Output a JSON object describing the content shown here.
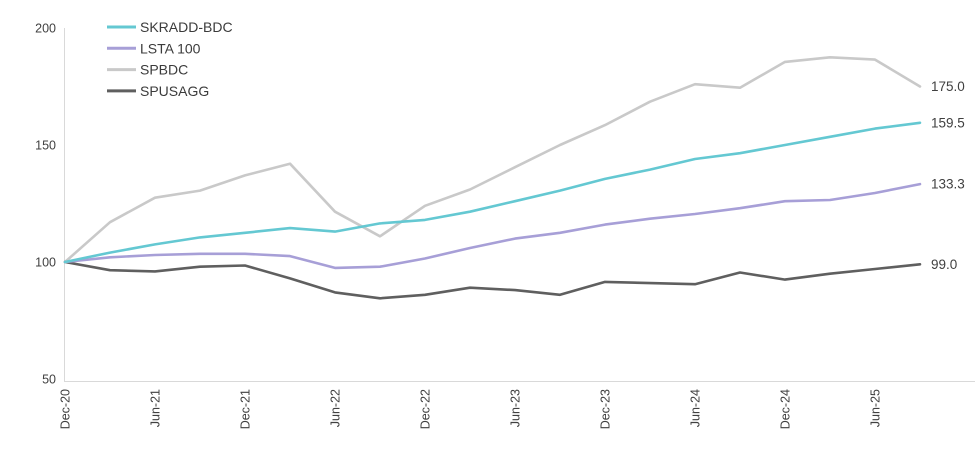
{
  "chart_data": {
    "type": "line",
    "title": "",
    "xlabel": "",
    "ylabel": "",
    "x": [
      "Dec-20",
      "Mar-21",
      "Jun-21",
      "Sep-21",
      "Dec-21",
      "Mar-22",
      "Jun-22",
      "Sep-22",
      "Dec-22",
      "Mar-23",
      "Jun-23",
      "Sep-23",
      "Dec-23",
      "Mar-24",
      "Jun-24",
      "Sep-24",
      "Dec-24",
      "Mar-25",
      "Jun-25",
      "Sep-25"
    ],
    "x_tick_labels": [
      "Dec-20",
      "Jun-21",
      "Dec-21",
      "Jun-22",
      "Dec-22",
      "Jun-23",
      "Dec-23",
      "Jun-24",
      "Dec-24",
      "Jun-25"
    ],
    "y_ticks": [
      200,
      150,
      100,
      50
    ],
    "ylim": [
      50,
      200
    ],
    "grid": false,
    "legend_position": "top-left",
    "series": [
      {
        "name": "SKRADD-BDC",
        "color": "#64c8d2",
        "end_label": "159.5",
        "values": [
          100,
          104,
          107.5,
          110.5,
          112.5,
          114.5,
          113,
          116.5,
          118,
          121.5,
          126,
          130.5,
          135.5,
          139.5,
          144,
          146.5,
          150,
          153.5,
          157,
          159.5
        ]
      },
      {
        "name": "LSTA 100",
        "color": "#a79fd7",
        "end_label": "133.3",
        "values": [
          100,
          102,
          103,
          103.5,
          103.5,
          102.5,
          97.5,
          98,
          101.5,
          106,
          110,
          112.5,
          116,
          118.5,
          120.5,
          123,
          126,
          126.5,
          129.5,
          133.3
        ]
      },
      {
        "name": "SPBDC",
        "color": "#c9c9c9",
        "end_label": "175.0",
        "values": [
          100,
          117,
          127.5,
          130.5,
          137,
          142,
          121.5,
          111,
          124,
          131,
          140.5,
          150,
          158.5,
          168.5,
          176,
          174.5,
          185.5,
          187.5,
          186.5,
          175
        ]
      },
      {
        "name": "SPUSAGG",
        "color": "#5f5f5f",
        "end_label": "99.0",
        "values": [
          100,
          96.5,
          96,
          98,
          98.5,
          93,
          87,
          84.5,
          86,
          89,
          88,
          86,
          91.5,
          91,
          90.5,
          95.5,
          92.5,
          95,
          97,
          99
        ]
      }
    ]
  },
  "colors": {
    "axis_line": "#d9d9d9",
    "tick_text": "#404040",
    "legend_text": "#3b3b3b",
    "background": "#ffffff"
  }
}
